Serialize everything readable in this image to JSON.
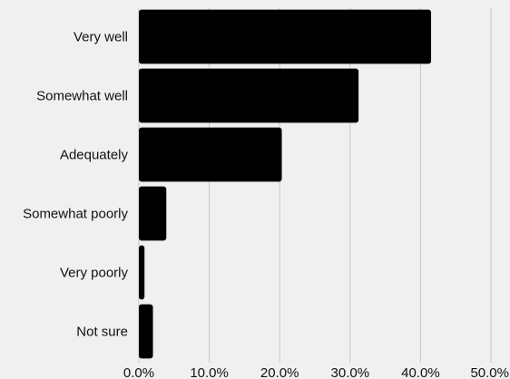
{
  "chart_data": {
    "type": "bar",
    "orientation": "horizontal",
    "categories": [
      "Very well",
      "Somewhat well",
      "Adequately",
      "Somewhat poorly",
      "Very poorly",
      "Not sure"
    ],
    "values": [
      41.5,
      31.2,
      20.3,
      3.9,
      0.8,
      2.0
    ],
    "xlim": [
      0,
      50
    ],
    "x_ticks": [
      "0.0%",
      "10.0%",
      "20.0%",
      "30.0%",
      "40.0%",
      "50.0%"
    ],
    "grid": "vertical",
    "title": "",
    "xlabel": "",
    "ylabel": "",
    "colors": {
      "bar": "#000000",
      "background": "#f0f0f0",
      "grid": "#c8c8c8"
    }
  }
}
